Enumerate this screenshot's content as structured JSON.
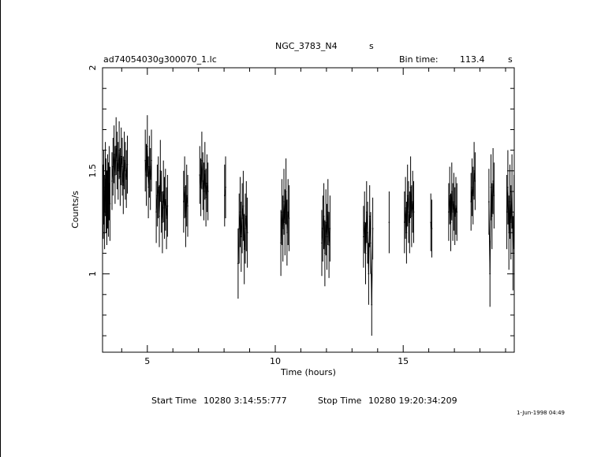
{
  "header": {
    "object": "NGC_3783_N4",
    "object_unit": "s",
    "filename": "ad74054030g300070_1.lc",
    "bin_label": "Bin time:",
    "bin_value": "113.4",
    "bin_unit": "s"
  },
  "footer": {
    "start_label": "Start Time",
    "start_value": "10280  3:14:55:777",
    "stop_label": "Stop Time",
    "stop_value": "10280 19:20:34:209",
    "stamp": "1-Jun-1998 04:49"
  },
  "chart_data": {
    "type": "scatter",
    "title": "NGC_3783_N4",
    "xlabel": "Time (hours)",
    "ylabel": "Counts/s",
    "xlim": [
      3.25,
      19.34
    ],
    "ylim": [
      0.62,
      2.0
    ],
    "xticks": [
      "5",
      "10",
      "15"
    ],
    "yticks": [
      "1",
      "1.5",
      "2"
    ],
    "grid": false,
    "series": [
      {
        "segments": [
          {
            "x": [
              3.28,
              3.3,
              3.33,
              3.36,
              3.39,
              3.42,
              3.45,
              3.48,
              3.51,
              3.54
            ],
            "y": [
              1.35,
              1.42,
              1.3,
              1.46,
              1.38,
              1.32,
              1.4,
              1.36,
              1.44,
              1.34
            ],
            "err": [
              0.18,
              0.18,
              0.18,
              0.18,
              0.18,
              0.18,
              0.18,
              0.18,
              0.18,
              0.18
            ]
          },
          {
            "x": [
              3.62,
              3.66,
              3.7,
              3.74,
              3.78,
              3.82,
              3.86,
              3.9,
              3.94,
              3.98,
              4.02,
              4.06,
              4.1,
              4.14,
              4.18,
              4.22
            ],
            "y": [
              1.45,
              1.52,
              1.58,
              1.48,
              1.62,
              1.55,
              1.5,
              1.6,
              1.47,
              1.57,
              1.52,
              1.43,
              1.55,
              1.5,
              1.46,
              1.53
            ],
            "err": [
              0.14,
              0.14,
              0.14,
              0.14,
              0.14,
              0.14,
              0.14,
              0.14,
              0.14,
              0.14,
              0.14,
              0.14,
              0.14,
              0.14,
              0.14,
              0.14
            ]
          },
          {
            "x": [
              4.92,
              4.96,
              5.0,
              5.04,
              5.08,
              5.12,
              5.16
            ],
            "y": [
              1.55,
              1.48,
              1.62,
              1.42,
              1.52,
              1.46,
              1.55
            ],
            "err": [
              0.15,
              0.15,
              0.15,
              0.15,
              0.15,
              0.15,
              0.15
            ]
          },
          {
            "x": [
              5.35,
              5.39,
              5.43,
              5.47,
              5.51,
              5.55,
              5.59,
              5.63,
              5.67,
              5.71,
              5.75,
              5.79
            ],
            "y": [
              1.3,
              1.38,
              1.42,
              1.28,
              1.5,
              1.35,
              1.25,
              1.4,
              1.32,
              1.36,
              1.27,
              1.33
            ],
            "err": [
              0.15,
              0.15,
              0.15,
              0.15,
              0.15,
              0.15,
              0.15,
              0.15,
              0.15,
              0.15,
              0.15,
              0.15
            ]
          },
          {
            "x": [
              6.42,
              6.46,
              6.5,
              6.54,
              6.58
            ],
            "y": [
              1.35,
              1.42,
              1.28,
              1.38,
              1.33
            ],
            "err": [
              0.15,
              0.15,
              0.15,
              0.15,
              0.15
            ]
          },
          {
            "x": [
              7.05,
              7.09,
              7.13,
              7.17,
              7.21,
              7.25,
              7.29,
              7.33,
              7.37
            ],
            "y": [
              1.48,
              1.42,
              1.55,
              1.45,
              1.4,
              1.5,
              1.37,
              1.44,
              1.4
            ],
            "err": [
              0.14,
              0.14,
              0.14,
              0.14,
              0.14,
              0.14,
              0.14,
              0.14,
              0.14
            ]
          },
          {
            "x": [
              8.02,
              8.06
            ],
            "y": [
              1.38,
              1.42
            ],
            "err": [
              0.15,
              0.15
            ]
          },
          {
            "x": [
              8.55,
              8.59,
              8.63,
              8.67,
              8.71,
              8.75,
              8.79,
              8.83,
              8.87,
              8.91
            ],
            "y": [
              1.05,
              1.22,
              1.3,
              1.18,
              1.27,
              1.33,
              1.12,
              1.22,
              1.28,
              1.2
            ],
            "err": [
              0.17,
              0.17,
              0.17,
              0.17,
              0.17,
              0.17,
              0.17,
              0.17,
              0.17,
              0.17
            ]
          },
          {
            "x": [
              10.22,
              10.26,
              10.3,
              10.34,
              10.38,
              10.42,
              10.46,
              10.5,
              10.54
            ],
            "y": [
              1.15,
              1.3,
              1.22,
              1.35,
              1.25,
              1.4,
              1.2,
              1.3,
              1.27
            ],
            "err": [
              0.16,
              0.16,
              0.16,
              0.16,
              0.16,
              0.16,
              0.16,
              0.16,
              0.16
            ]
          },
          {
            "x": [
              11.82,
              11.86,
              11.9,
              11.94,
              11.98,
              12.02,
              12.06,
              12.1,
              12.14
            ],
            "y": [
              1.15,
              1.22,
              1.28,
              1.1,
              1.25,
              1.18,
              1.3,
              1.14,
              1.22
            ],
            "err": [
              0.16,
              0.16,
              0.16,
              0.16,
              0.16,
              0.16,
              0.16,
              0.16,
              0.16
            ]
          },
          {
            "x": [
              13.45,
              13.49,
              13.53,
              13.57,
              13.61,
              13.65,
              13.69,
              13.73,
              13.77,
              13.81
            ],
            "y": [
              1.18,
              1.25,
              1.1,
              1.3,
              1.2,
              1.0,
              1.28,
              1.15,
              0.85,
              1.22
            ],
            "err": [
              0.15,
              0.15,
              0.15,
              0.15,
              0.15,
              0.15,
              0.15,
              0.15,
              0.15,
              0.15
            ]
          },
          {
            "x": [
              14.45
            ],
            "y": [
              1.25
            ],
            "err": [
              0.15
            ]
          },
          {
            "x": [
              15.05,
              15.09,
              15.13,
              15.17,
              15.21,
              15.25,
              15.29,
              15.33,
              15.37,
              15.41
            ],
            "y": [
              1.25,
              1.32,
              1.2,
              1.38,
              1.3,
              1.25,
              1.42,
              1.28,
              1.35,
              1.3
            ],
            "err": [
              0.15,
              0.15,
              0.15,
              0.15,
              0.15,
              0.15,
              0.15,
              0.15,
              0.15,
              0.15
            ]
          },
          {
            "x": [
              16.08,
              16.12
            ],
            "y": [
              1.25,
              1.22
            ],
            "err": [
              0.14,
              0.14
            ]
          },
          {
            "x": [
              16.78,
              16.82,
              16.86,
              16.9,
              16.94,
              16.98,
              17.02,
              17.06,
              17.1
            ],
            "y": [
              1.3,
              1.38,
              1.25,
              1.4,
              1.3,
              1.35,
              1.28,
              1.33,
              1.3
            ],
            "err": [
              0.14,
              0.14,
              0.14,
              0.14,
              0.14,
              0.14,
              0.14,
              0.14,
              0.14
            ]
          },
          {
            "x": [
              17.65,
              17.69,
              17.73,
              17.77,
              17.81
            ],
            "y": [
              1.35,
              1.42,
              1.38,
              1.5,
              1.45
            ],
            "err": [
              0.14,
              0.14,
              0.14,
              0.14,
              0.14
            ]
          },
          {
            "x": [
              18.35,
              18.39,
              18.43,
              18.47,
              18.51,
              18.55
            ],
            "y": [
              1.35,
              1.0,
              1.42,
              1.28,
              1.45,
              1.38
            ],
            "err": [
              0.16,
              0.16,
              0.16,
              0.16,
              0.16,
              0.16
            ]
          },
          {
            "x": [
              19.05,
              19.09,
              19.13,
              19.17,
              19.21,
              19.25,
              19.29,
              19.33
            ],
            "y": [
              1.3,
              1.42,
              1.2,
              1.35,
              1.25,
              1.4,
              1.1,
              1.3
            ],
            "err": [
              0.18,
              0.18,
              0.18,
              0.18,
              0.18,
              0.18,
              0.18,
              0.18
            ]
          }
        ]
      }
    ]
  }
}
